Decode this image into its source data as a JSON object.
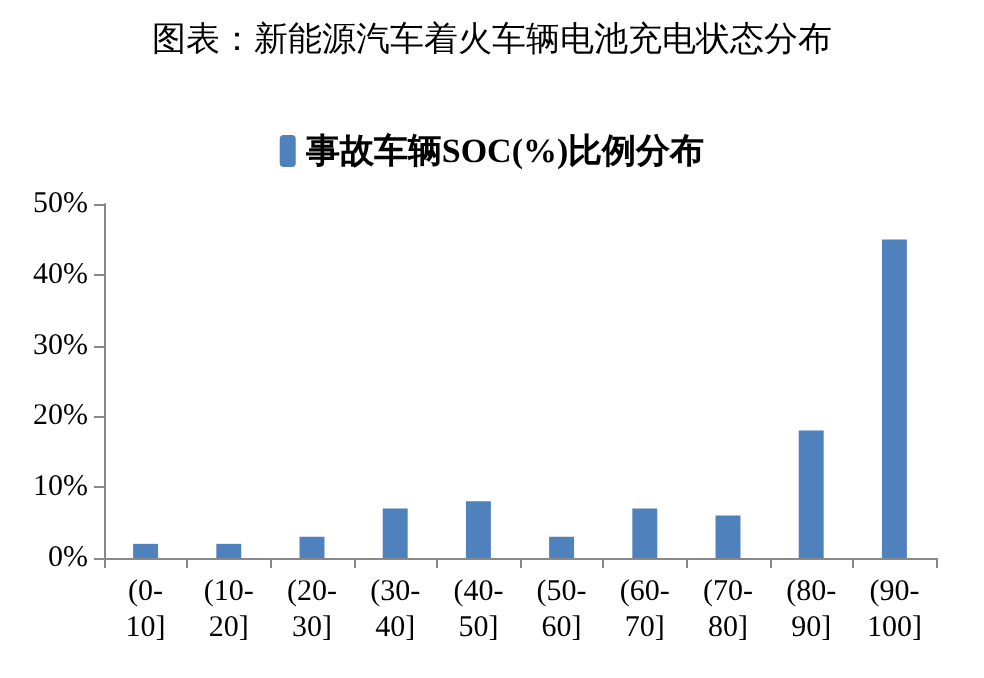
{
  "chart_data": {
    "type": "bar",
    "title": "图表：新能源汽车着火车辆电池充电状态分布",
    "categories": [
      "(0-\n10]",
      "(10-\n20]",
      "(20-\n30]",
      "(30-\n40]",
      "(40-\n50]",
      "(50-\n60]",
      "(60-\n70]",
      "(70-\n80]",
      "(80-\n90]",
      "(90-\n100]"
    ],
    "series": [
      {
        "name": "事故车辆SOC(%)比例分布",
        "color": "#4f81bd",
        "values": [
          2,
          2,
          3,
          7,
          8,
          3,
          7,
          6,
          18,
          45
        ]
      }
    ],
    "ylim": [
      0,
      50
    ],
    "yticks": [
      {
        "value": 0,
        "label": "0%"
      },
      {
        "value": 10,
        "label": "10%"
      },
      {
        "value": 20,
        "label": "20%"
      },
      {
        "value": 30,
        "label": "30%"
      },
      {
        "value": 40,
        "label": "40%"
      },
      {
        "value": 50,
        "label": "50%"
      }
    ],
    "grid": false,
    "legend": "top"
  }
}
